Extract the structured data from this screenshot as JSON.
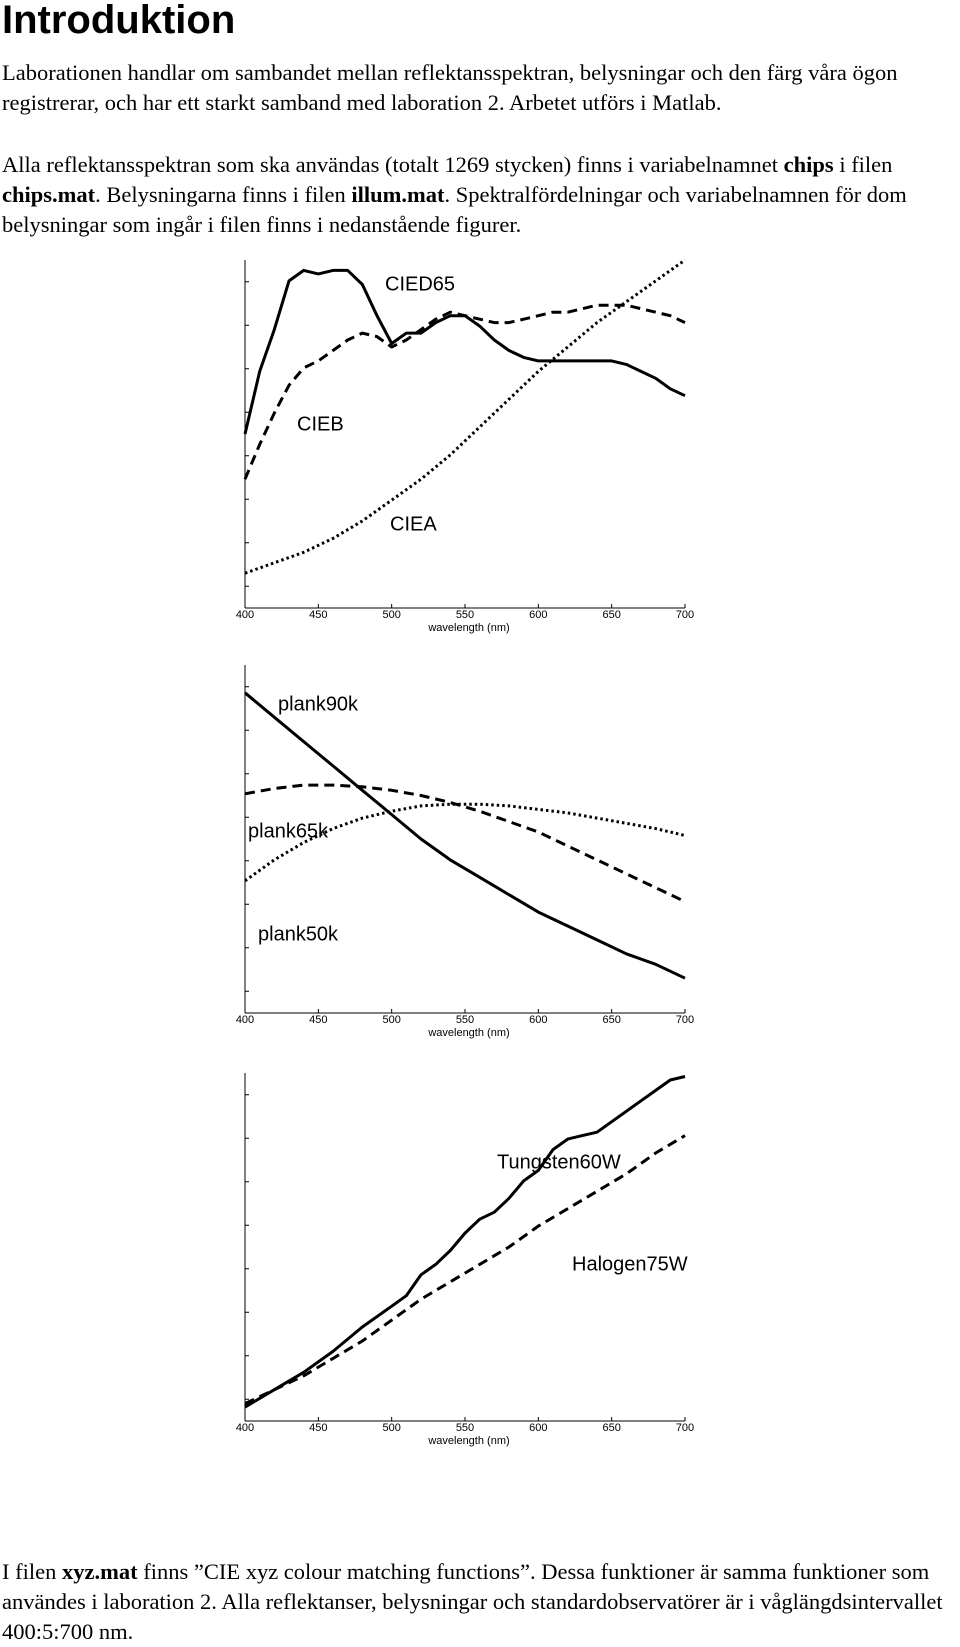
{
  "heading": "Introduktion",
  "intro": {
    "p1": "Laborationen handlar om sambandet mellan reflektansspektran, belysningar och den färg våra ögon registrerar, och har ett starkt samband med laboration 2. Arbetet utförs i Matlab.",
    "p2": {
      "t1": "Alla reflektansspektran som ska användas (totalt 1269 stycken) finns i variabelnamnet ",
      "b1": "chips",
      "t2": " i filen ",
      "b2": "chips.mat",
      "t3": ". Belysningarna finns i filen ",
      "b3": "illum.mat",
      "t4": ". Spektralfördelningar och variabelnamnen för dom belysningar som ingår i filen finns i nedanstående figurer."
    }
  },
  "outro": {
    "t1": "I filen ",
    "b1": "xyz.mat",
    "t2": " finns ”CIE xyz colour matching functions”. Dessa funktioner är samma funktioner som användes i laboration 2. Alla reflektanser, belysningar och standardobservatörer är i våglängdsintervallet 400:5:700 nm."
  },
  "chart_data": [
    {
      "type": "line",
      "xlabel": "wavelength (nm)",
      "ylabel": "",
      "xlim": [
        400,
        700
      ],
      "ylim": [
        0,
        1
      ],
      "x_ticks": [
        400,
        450,
        500,
        550,
        600,
        650,
        700
      ],
      "y_tick_count": 8,
      "grid": false,
      "series": [
        {
          "name": "CIED65",
          "dash": "solid",
          "x": [
            400,
            410,
            420,
            430,
            440,
            450,
            460,
            470,
            480,
            490,
            500,
            510,
            520,
            530,
            540,
            550,
            560,
            570,
            580,
            590,
            600,
            610,
            620,
            630,
            640,
            650,
            660,
            670,
            680,
            690,
            700
          ],
          "y": [
            0.5,
            0.68,
            0.8,
            0.94,
            0.97,
            0.96,
            0.97,
            0.97,
            0.93,
            0.84,
            0.76,
            0.79,
            0.79,
            0.82,
            0.84,
            0.84,
            0.81,
            0.77,
            0.74,
            0.72,
            0.71,
            0.71,
            0.71,
            0.71,
            0.71,
            0.71,
            0.7,
            0.68,
            0.66,
            0.63,
            0.61
          ]
        },
        {
          "name": "CIEB",
          "dash": "dash",
          "x": [
            400,
            410,
            420,
            430,
            440,
            450,
            460,
            470,
            480,
            490,
            500,
            510,
            520,
            530,
            540,
            550,
            560,
            570,
            580,
            590,
            600,
            610,
            620,
            630,
            640,
            650,
            660,
            670,
            680,
            690,
            700
          ],
          "y": [
            0.37,
            0.47,
            0.56,
            0.64,
            0.69,
            0.71,
            0.74,
            0.77,
            0.79,
            0.78,
            0.75,
            0.77,
            0.8,
            0.83,
            0.85,
            0.84,
            0.83,
            0.82,
            0.82,
            0.83,
            0.84,
            0.85,
            0.85,
            0.86,
            0.87,
            0.87,
            0.87,
            0.86,
            0.85,
            0.84,
            0.82
          ]
        },
        {
          "name": "CIEA",
          "dash": "dot",
          "x": [
            400,
            420,
            440,
            460,
            480,
            500,
            520,
            540,
            560,
            580,
            600,
            620,
            640,
            660,
            680,
            700
          ],
          "y": [
            0.1,
            0.13,
            0.16,
            0.2,
            0.25,
            0.31,
            0.37,
            0.44,
            0.52,
            0.6,
            0.68,
            0.75,
            0.82,
            0.88,
            0.94,
            1.0
          ]
        }
      ]
    },
    {
      "type": "line",
      "xlabel": "wavelength (nm)",
      "ylabel": "",
      "xlim": [
        400,
        700
      ],
      "ylim": [
        0,
        1
      ],
      "x_ticks": [
        400,
        450,
        500,
        550,
        600,
        650,
        700
      ],
      "y_tick_count": 8,
      "grid": false,
      "series": [
        {
          "name": "plank90k",
          "dash": "solid",
          "x": [
            400,
            420,
            440,
            460,
            480,
            500,
            520,
            540,
            560,
            580,
            600,
            620,
            640,
            660,
            680,
            700
          ],
          "y": [
            0.92,
            0.85,
            0.78,
            0.71,
            0.64,
            0.57,
            0.5,
            0.44,
            0.39,
            0.34,
            0.29,
            0.25,
            0.21,
            0.17,
            0.14,
            0.1
          ]
        },
        {
          "name": "plank65k",
          "dash": "dash",
          "x": [
            400,
            420,
            440,
            460,
            480,
            500,
            520,
            540,
            560,
            580,
            600,
            620,
            640,
            660,
            680,
            700
          ],
          "y": [
            0.63,
            0.645,
            0.655,
            0.655,
            0.65,
            0.64,
            0.625,
            0.605,
            0.58,
            0.55,
            0.52,
            0.48,
            0.44,
            0.4,
            0.36,
            0.32
          ]
        },
        {
          "name": "plank50k",
          "dash": "dot",
          "x": [
            400,
            420,
            440,
            460,
            480,
            500,
            520,
            540,
            560,
            580,
            600,
            620,
            640,
            660,
            680,
            700
          ],
          "y": [
            0.38,
            0.44,
            0.49,
            0.53,
            0.56,
            0.58,
            0.595,
            0.6,
            0.6,
            0.595,
            0.585,
            0.575,
            0.56,
            0.545,
            0.53,
            0.51
          ]
        }
      ]
    },
    {
      "type": "line",
      "xlabel": "wavelength (nm)",
      "ylabel": "",
      "xlim": [
        400,
        700
      ],
      "ylim": [
        0,
        1
      ],
      "x_ticks": [
        400,
        450,
        500,
        550,
        600,
        650,
        700
      ],
      "y_tick_count": 8,
      "grid": false,
      "series": [
        {
          "name": "Tungsten60W",
          "dash": "solid",
          "x": [
            400,
            420,
            440,
            460,
            480,
            500,
            510,
            520,
            530,
            540,
            550,
            560,
            570,
            580,
            590,
            600,
            610,
            620,
            630,
            640,
            650,
            660,
            670,
            680,
            690,
            700
          ],
          "y": [
            0.04,
            0.09,
            0.14,
            0.2,
            0.27,
            0.33,
            0.36,
            0.42,
            0.45,
            0.49,
            0.54,
            0.58,
            0.6,
            0.64,
            0.69,
            0.72,
            0.78,
            0.81,
            0.82,
            0.83,
            0.86,
            0.89,
            0.92,
            0.95,
            0.98,
            0.99
          ]
        },
        {
          "name": "Halogen75W",
          "dash": "dash",
          "x": [
            400,
            420,
            440,
            460,
            480,
            500,
            520,
            540,
            560,
            580,
            600,
            620,
            640,
            660,
            680,
            700
          ],
          "y": [
            0.05,
            0.09,
            0.13,
            0.18,
            0.23,
            0.29,
            0.35,
            0.4,
            0.45,
            0.5,
            0.56,
            0.61,
            0.66,
            0.71,
            0.77,
            0.82
          ]
        }
      ]
    }
  ]
}
